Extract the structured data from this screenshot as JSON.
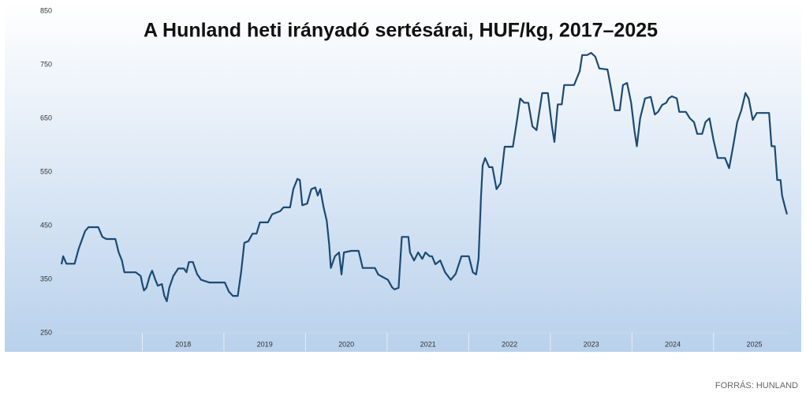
{
  "chart_data": {
    "type": "line",
    "title": "A Hunland heti irányadó sertésárai, HUF/kg, 2017–2025",
    "source": "FORRÁS: HUNLAND",
    "x": [
      2017.01,
      2017.03,
      2017.07,
      2017.17,
      2017.22,
      2017.3,
      2017.34,
      2017.46,
      2017.51,
      2017.56,
      2017.67,
      2017.71,
      2017.75,
      2017.78,
      2017.92,
      2017.98,
      2018.0,
      2018.02,
      2018.05,
      2018.09,
      2018.12,
      2018.16,
      2018.19,
      2018.24,
      2018.27,
      2018.3,
      2018.33,
      2018.38,
      2018.44,
      2018.51,
      2018.54,
      2018.57,
      2018.62,
      2018.67,
      2018.72,
      2018.82,
      2019.01,
      2019.06,
      2019.11,
      2019.17,
      2019.21,
      2019.25,
      2019.3,
      2019.35,
      2019.4,
      2019.44,
      2019.54,
      2019.59,
      2019.69,
      2019.73,
      2019.81,
      2019.85,
      2019.9,
      2019.93,
      2019.96,
      2020.02,
      2020.07,
      2020.12,
      2020.15,
      2020.18,
      2020.22,
      2020.26,
      2020.29,
      2020.31,
      2020.36,
      2020.41,
      2020.44,
      2020.47,
      2020.56,
      2020.65,
      2020.7,
      2020.85,
      2020.89,
      2020.96,
      2021.01,
      2021.06,
      2021.09,
      2021.14,
      2021.18,
      2021.26,
      2021.28,
      2021.33,
      2021.38,
      2021.43,
      2021.47,
      2021.52,
      2021.55,
      2021.59,
      2021.65,
      2021.71,
      2021.78,
      2021.84,
      2021.91,
      2022.0,
      2022.05,
      2022.09,
      2022.12,
      2022.15,
      2022.17,
      2022.2,
      2022.25,
      2022.29,
      2022.34,
      2022.39,
      2022.44,
      2022.54,
      2022.58,
      2022.63,
      2022.68,
      2022.73,
      2022.78,
      2022.83,
      2022.9,
      2022.97,
      2023.02,
      2023.05,
      2023.09,
      2023.14,
      2023.17,
      2023.29,
      2023.36,
      2023.39,
      2023.45,
      2023.5,
      2023.55,
      2023.6,
      2023.7,
      2023.74,
      2023.79,
      2023.85,
      2023.89,
      2023.94,
      2023.99,
      2024.03,
      2024.06,
      2024.1,
      2024.16,
      2024.23,
      2024.28,
      2024.32,
      2024.37,
      2024.42,
      2024.45,
      2024.49,
      2024.55,
      2024.58,
      2024.66,
      2024.71,
      2024.76,
      2024.8,
      2024.86,
      2024.9,
      2024.95,
      2025.0,
      2025.05,
      2025.14,
      2025.19,
      2025.24,
      2025.29,
      2025.34,
      2025.39,
      2025.43,
      2025.48,
      2025.53,
      2025.68,
      2025.71,
      2025.75,
      2025.78,
      2025.82,
      2025.84,
      2025.87,
      2025.9
    ],
    "values": [
      378,
      393,
      379,
      379,
      407,
      440,
      447,
      447,
      429,
      425,
      425,
      400,
      385,
      363,
      363,
      356,
      341,
      329,
      334,
      356,
      366,
      349,
      338,
      341,
      319,
      309,
      334,
      356,
      370,
      370,
      363,
      382,
      382,
      360,
      349,
      344,
      344,
      327,
      319,
      319,
      363,
      418,
      421,
      435,
      435,
      456,
      456,
      471,
      477,
      484,
      484,
      518,
      537,
      535,
      488,
      491,
      518,
      521,
      506,
      518,
      485,
      459,
      415,
      371,
      393,
      400,
      359,
      400,
      403,
      403,
      371,
      371,
      359,
      353,
      349,
      335,
      331,
      334,
      429,
      429,
      400,
      385,
      400,
      388,
      400,
      393,
      393,
      378,
      385,
      363,
      349,
      360,
      393,
      393,
      363,
      359,
      388,
      503,
      562,
      576,
      559,
      559,
      518,
      529,
      597,
      597,
      635,
      687,
      679,
      679,
      635,
      628,
      697,
      697,
      635,
      606,
      676,
      676,
      712,
      712,
      738,
      768,
      768,
      772,
      765,
      743,
      741,
      709,
      665,
      665,
      712,
      716,
      679,
      628,
      598,
      650,
      687,
      690,
      657,
      662,
      675,
      679,
      687,
      691,
      687,
      662,
      662,
      650,
      643,
      621,
      621,
      643,
      650,
      609,
      576,
      576,
      557,
      598,
      643,
      665,
      697,
      687,
      647,
      660,
      660,
      598,
      598,
      535,
      535,
      506,
      488,
      471
    ],
    "color": "#1b4a74",
    "xlim": [
      2017,
      2025.92
    ],
    "xticks": [
      2018,
      2019,
      2020,
      2021,
      2022,
      2023,
      2024,
      2025
    ],
    "ylim": [
      250,
      850
    ],
    "yticks": [
      850,
      750,
      650,
      550,
      450,
      350,
      250
    ]
  }
}
